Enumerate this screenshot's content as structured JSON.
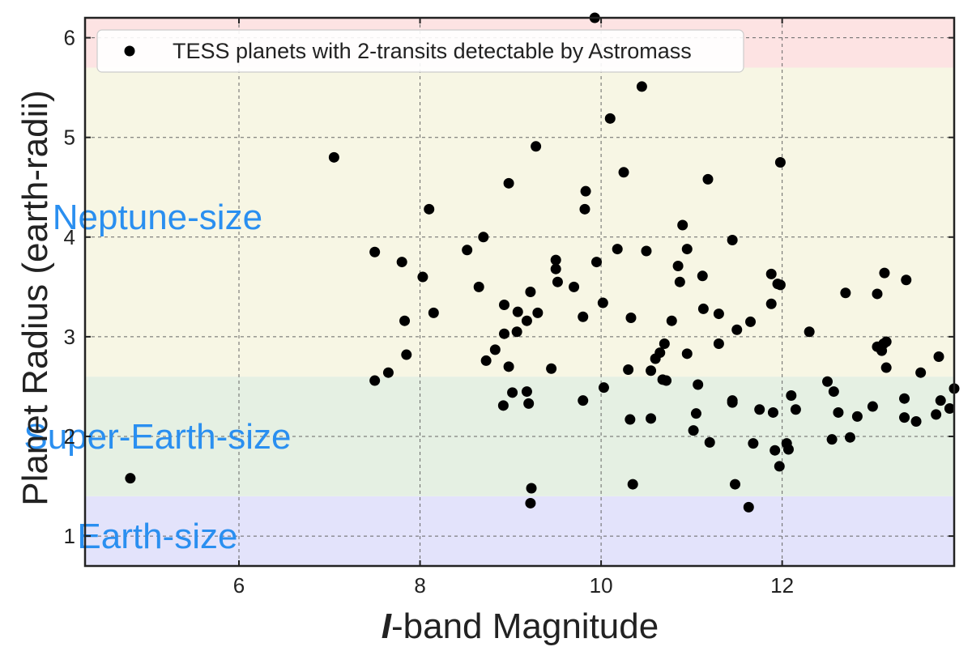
{
  "chart_data": {
    "type": "scatter",
    "xlabel_italic": "I",
    "xlabel_rest": "-band Magnitude",
    "ylabel": "Planet Radius (earth-radii)",
    "xlim": [
      4.3,
      13.9
    ],
    "ylim": [
      0.7,
      6.2
    ],
    "xticks": [
      6,
      8,
      10,
      12
    ],
    "yticks": [
      1,
      2,
      3,
      4,
      5,
      6
    ],
    "grid": true,
    "legend_position": "top-left",
    "regions": [
      {
        "label": "Earth-size",
        "y0": 0.7,
        "y1": 1.4,
        "color": "#e3e3fb",
        "label_x": 5.1,
        "label_y": 1.0
      },
      {
        "label": "Super-Earth-size",
        "y0": 1.4,
        "y1": 2.6,
        "color": "#e5f0e3",
        "label_x": 5.1,
        "label_y": 2.0
      },
      {
        "label": "Neptune-size",
        "y0": 2.6,
        "y1": 5.7,
        "color": "#f7f6e4",
        "label_x": 5.1,
        "label_y": 4.2
      },
      {
        "label": "",
        "y0": 5.7,
        "y1": 6.2,
        "color": "#fde3e3"
      }
    ],
    "series": [
      {
        "name": "TESS planets with 2-transits detectable by Astromass",
        "color": "#000000",
        "points": [
          [
            4.8,
            1.58
          ],
          [
            7.05,
            4.8
          ],
          [
            7.5,
            3.85
          ],
          [
            7.5,
            2.56
          ],
          [
            7.65,
            2.64
          ],
          [
            7.8,
            3.75
          ],
          [
            7.83,
            3.16
          ],
          [
            7.85,
            2.82
          ],
          [
            8.03,
            3.6
          ],
          [
            8.1,
            4.28
          ],
          [
            8.15,
            3.24
          ],
          [
            8.52,
            3.87
          ],
          [
            8.65,
            3.5
          ],
          [
            8.7,
            4.0
          ],
          [
            8.73,
            2.76
          ],
          [
            8.83,
            2.87
          ],
          [
            8.93,
            3.32
          ],
          [
            8.93,
            3.03
          ],
          [
            8.92,
            2.31
          ],
          [
            8.98,
            4.54
          ],
          [
            8.98,
            2.7
          ],
          [
            9.02,
            2.44
          ],
          [
            9.07,
            3.05
          ],
          [
            9.08,
            3.25
          ],
          [
            9.18,
            3.16
          ],
          [
            9.18,
            2.45
          ],
          [
            9.2,
            2.33
          ],
          [
            9.22,
            3.45
          ],
          [
            9.22,
            1.33
          ],
          [
            9.23,
            1.48
          ],
          [
            9.28,
            4.91
          ],
          [
            9.3,
            3.24
          ],
          [
            9.45,
            2.68
          ],
          [
            9.5,
            3.77
          ],
          [
            9.5,
            3.68
          ],
          [
            9.52,
            3.55
          ],
          [
            9.7,
            3.5
          ],
          [
            9.8,
            3.2
          ],
          [
            9.8,
            2.36
          ],
          [
            9.82,
            4.28
          ],
          [
            9.83,
            4.46
          ],
          [
            9.93,
            6.2
          ],
          [
            9.95,
            3.75
          ],
          [
            10.02,
            3.34
          ],
          [
            10.03,
            2.49
          ],
          [
            10.1,
            5.19
          ],
          [
            10.18,
            3.88
          ],
          [
            10.25,
            4.65
          ],
          [
            10.3,
            2.67
          ],
          [
            10.32,
            2.17
          ],
          [
            10.33,
            3.19
          ],
          [
            10.35,
            1.52
          ],
          [
            10.45,
            5.51
          ],
          [
            10.5,
            3.86
          ],
          [
            10.55,
            2.66
          ],
          [
            10.55,
            2.18
          ],
          [
            10.6,
            2.78
          ],
          [
            10.65,
            2.84
          ],
          [
            10.68,
            2.57
          ],
          [
            10.7,
            2.93
          ],
          [
            10.72,
            2.56
          ],
          [
            10.78,
            3.16
          ],
          [
            10.85,
            3.71
          ],
          [
            10.87,
            3.55
          ],
          [
            10.9,
            4.12
          ],
          [
            10.95,
            3.88
          ],
          [
            10.95,
            2.83
          ],
          [
            11.02,
            2.06
          ],
          [
            11.05,
            2.23
          ],
          [
            11.07,
            2.52
          ],
          [
            11.12,
            3.61
          ],
          [
            11.13,
            3.28
          ],
          [
            11.18,
            4.58
          ],
          [
            11.2,
            1.94
          ],
          [
            11.3,
            3.23
          ],
          [
            11.3,
            2.93
          ],
          [
            11.45,
            3.97
          ],
          [
            11.45,
            2.36
          ],
          [
            11.45,
            2.34
          ],
          [
            11.48,
            1.52
          ],
          [
            11.5,
            3.07
          ],
          [
            11.63,
            1.29
          ],
          [
            11.65,
            3.15
          ],
          [
            11.68,
            1.93
          ],
          [
            11.75,
            2.27
          ],
          [
            11.88,
            3.33
          ],
          [
            11.88,
            3.63
          ],
          [
            11.9,
            2.24
          ],
          [
            11.92,
            1.86
          ],
          [
            11.95,
            3.53
          ],
          [
            11.97,
            1.7
          ],
          [
            11.98,
            4.75
          ],
          [
            11.98,
            3.52
          ],
          [
            12.05,
            1.93
          ],
          [
            12.07,
            1.87
          ],
          [
            12.1,
            2.41
          ],
          [
            12.15,
            2.27
          ],
          [
            12.3,
            3.05
          ],
          [
            12.5,
            2.55
          ],
          [
            12.55,
            1.97
          ],
          [
            12.57,
            2.45
          ],
          [
            12.62,
            2.24
          ],
          [
            12.7,
            3.44
          ],
          [
            12.75,
            1.99
          ],
          [
            12.83,
            2.2
          ],
          [
            13.0,
            2.3
          ],
          [
            13.05,
            3.43
          ],
          [
            13.05,
            2.9
          ],
          [
            13.1,
            2.86
          ],
          [
            13.12,
            2.93
          ],
          [
            13.13,
            3.64
          ],
          [
            13.15,
            2.95
          ],
          [
            13.15,
            2.69
          ],
          [
            13.35,
            2.38
          ],
          [
            13.35,
            2.19
          ],
          [
            13.37,
            3.57
          ],
          [
            13.48,
            2.15
          ],
          [
            13.53,
            2.64
          ],
          [
            13.7,
            2.22
          ],
          [
            13.73,
            2.8
          ],
          [
            13.75,
            2.36
          ],
          [
            13.85,
            2.28
          ],
          [
            13.9,
            2.48
          ]
        ]
      }
    ]
  }
}
